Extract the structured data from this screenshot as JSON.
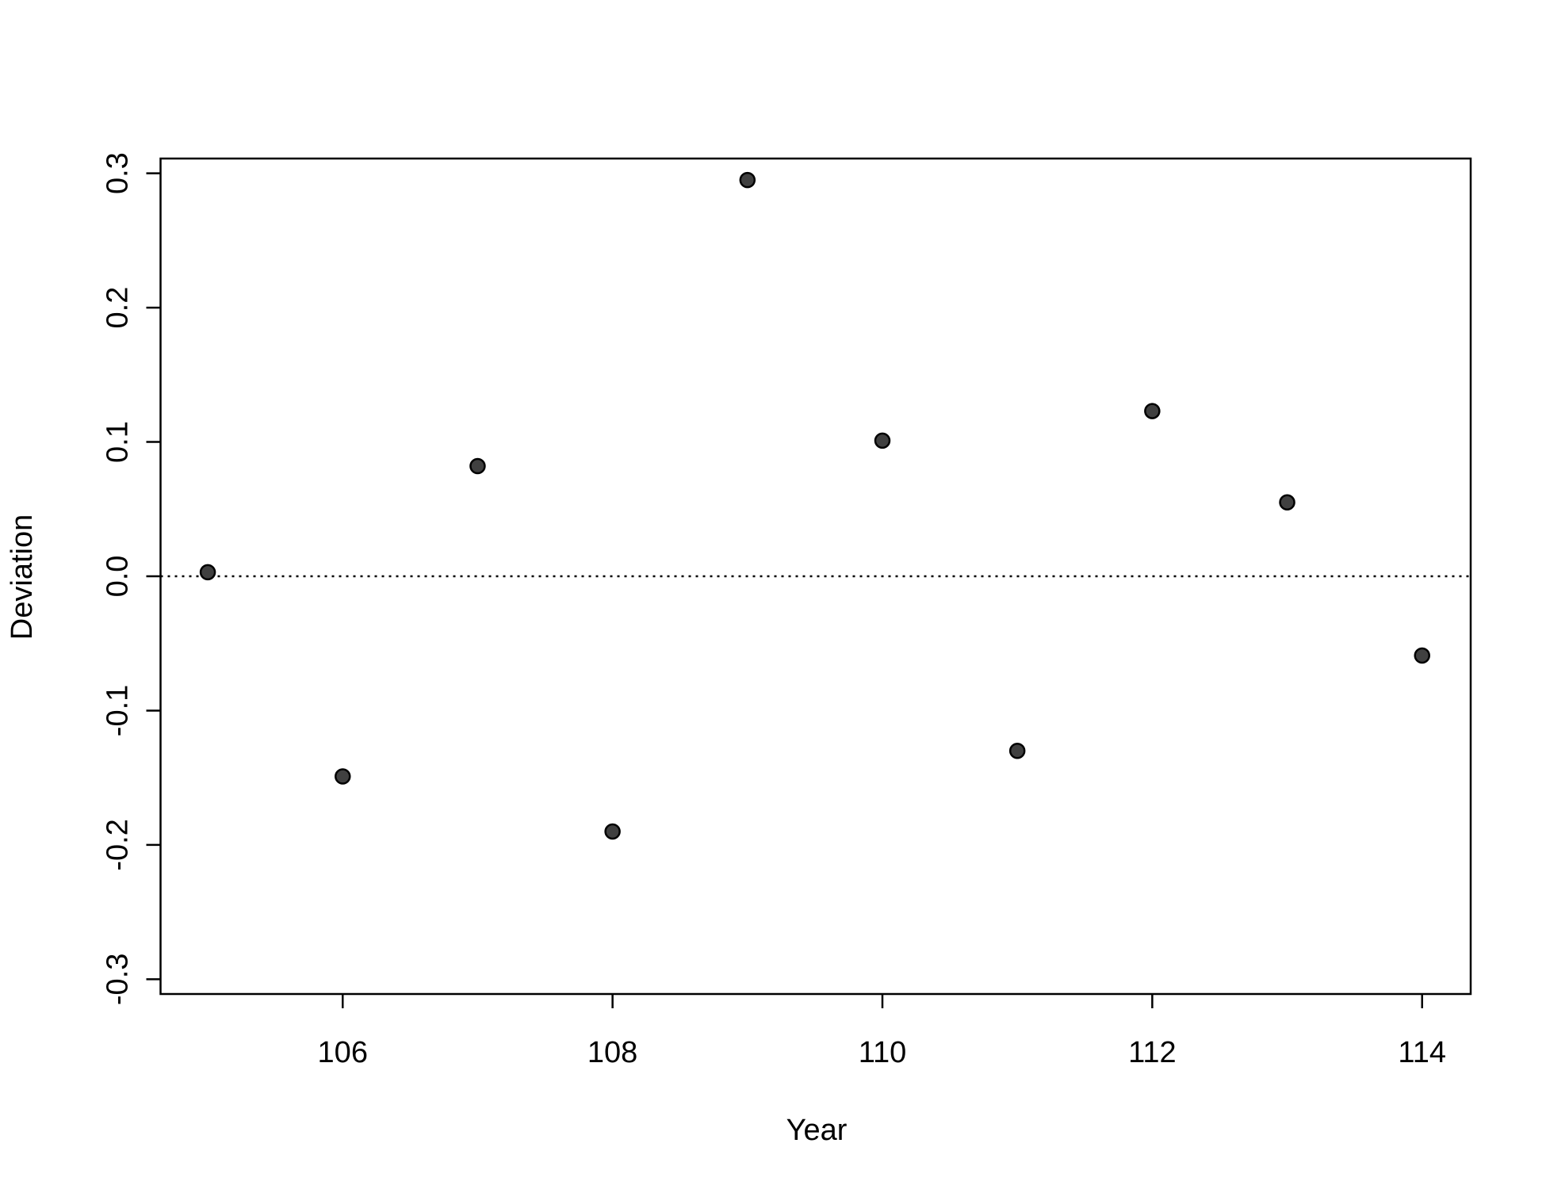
{
  "chart_data": {
    "type": "scatter",
    "x_label": "Year",
    "y_label": "Deviation",
    "series": [
      {
        "name": "Deviation",
        "color": "#404040",
        "x": [
          105,
          106,
          107,
          108,
          109,
          110,
          111,
          112,
          113,
          114
        ],
        "values": [
          0.003,
          -0.149,
          0.082,
          -0.19,
          0.295,
          0.101,
          -0.13,
          0.123,
          0.055,
          -0.059
        ]
      }
    ],
    "xlim": [
      104.65,
      114.36
    ],
    "ylim": [
      -0.311,
      0.311
    ],
    "xticks": [
      106,
      108,
      110,
      112,
      114
    ],
    "yticks": [
      -0.3,
      -0.2,
      -0.1,
      0.0,
      0.1,
      0.2,
      0.3
    ],
    "reference_line": 0,
    "grid": false
  }
}
